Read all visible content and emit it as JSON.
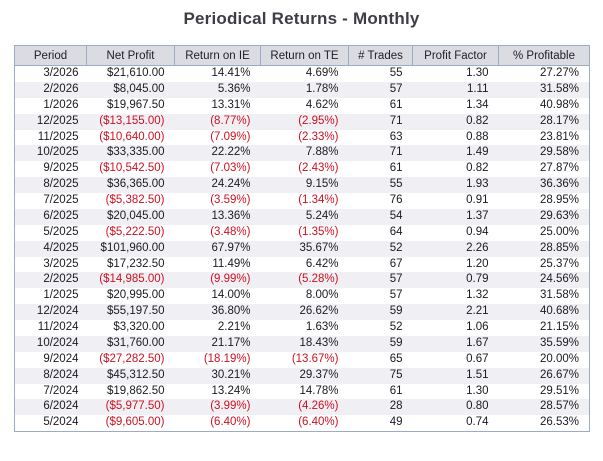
{
  "title": "Periodical Returns - Monthly",
  "colors": {
    "page_bg": "#ffffff",
    "title_color": "#3d3d46",
    "header_bg": "#dbdce1",
    "header_text": "#1e1e28",
    "border_color": "#9daac8",
    "body_text": "#1a1a22",
    "negative_red": "#cc1122",
    "alt_row_bg": "#f0f0f4"
  },
  "table": {
    "columns": [
      {
        "label": "Period"
      },
      {
        "label": "Net Profit"
      },
      {
        "label": "Return on IE"
      },
      {
        "label": "Return on TE"
      },
      {
        "label": "# Trades"
      },
      {
        "label": "Profit Factor"
      },
      {
        "label": "% Profitable"
      }
    ],
    "rows": [
      {
        "period": "3/2026",
        "net_profit": "$21,610.00",
        "return_on_ie": "14.41%",
        "return_on_te": "4.69%",
        "trades": "55",
        "profit_factor": "1.30",
        "pct_profitable": "27.27%"
      },
      {
        "period": "2/2026",
        "net_profit": "$8,045.00",
        "return_on_ie": "5.36%",
        "return_on_te": "1.78%",
        "trades": "57",
        "profit_factor": "1.11",
        "pct_profitable": "31.58%"
      },
      {
        "period": "1/2026",
        "net_profit": "$19,967.50",
        "return_on_ie": "13.31%",
        "return_on_te": "4.62%",
        "trades": "61",
        "profit_factor": "1.34",
        "pct_profitable": "40.98%"
      },
      {
        "period": "12/2025",
        "net_profit": "($13,155.00)",
        "return_on_ie": "(8.77%)",
        "return_on_te": "(2.95%)",
        "trades": "71",
        "profit_factor": "0.82",
        "pct_profitable": "28.17%"
      },
      {
        "period": "11/2025",
        "net_profit": "($10,640.00)",
        "return_on_ie": "(7.09%)",
        "return_on_te": "(2.33%)",
        "trades": "63",
        "profit_factor": "0.88",
        "pct_profitable": "23.81%"
      },
      {
        "period": "10/2025",
        "net_profit": "$33,335.00",
        "return_on_ie": "22.22%",
        "return_on_te": "7.88%",
        "trades": "71",
        "profit_factor": "1.49",
        "pct_profitable": "29.58%"
      },
      {
        "period": "9/2025",
        "net_profit": "($10,542.50)",
        "return_on_ie": "(7.03%)",
        "return_on_te": "(2.43%)",
        "trades": "61",
        "profit_factor": "0.82",
        "pct_profitable": "27.87%"
      },
      {
        "period": "8/2025",
        "net_profit": "$36,365.00",
        "return_on_ie": "24.24%",
        "return_on_te": "9.15%",
        "trades": "55",
        "profit_factor": "1.93",
        "pct_profitable": "36.36%"
      },
      {
        "period": "7/2025",
        "net_profit": "($5,382.50)",
        "return_on_ie": "(3.59%)",
        "return_on_te": "(1.34%)",
        "trades": "76",
        "profit_factor": "0.91",
        "pct_profitable": "28.95%"
      },
      {
        "period": "6/2025",
        "net_profit": "$20,045.00",
        "return_on_ie": "13.36%",
        "return_on_te": "5.24%",
        "trades": "54",
        "profit_factor": "1.37",
        "pct_profitable": "29.63%"
      },
      {
        "period": "5/2025",
        "net_profit": "($5,222.50)",
        "return_on_ie": "(3.48%)",
        "return_on_te": "(1.35%)",
        "trades": "64",
        "profit_factor": "0.94",
        "pct_profitable": "25.00%"
      },
      {
        "period": "4/2025",
        "net_profit": "$101,960.00",
        "return_on_ie": "67.97%",
        "return_on_te": "35.67%",
        "trades": "52",
        "profit_factor": "2.26",
        "pct_profitable": "28.85%"
      },
      {
        "period": "3/2025",
        "net_profit": "$17,232.50",
        "return_on_ie": "11.49%",
        "return_on_te": "6.42%",
        "trades": "67",
        "profit_factor": "1.20",
        "pct_profitable": "25.37%"
      },
      {
        "period": "2/2025",
        "net_profit": "($14,985.00)",
        "return_on_ie": "(9.99%)",
        "return_on_te": "(5.28%)",
        "trades": "57",
        "profit_factor": "0.79",
        "pct_profitable": "24.56%"
      },
      {
        "period": "1/2025",
        "net_profit": "$20,995.00",
        "return_on_ie": "14.00%",
        "return_on_te": "8.00%",
        "trades": "57",
        "profit_factor": "1.32",
        "pct_profitable": "31.58%"
      },
      {
        "period": "12/2024",
        "net_profit": "$55,197.50",
        "return_on_ie": "36.80%",
        "return_on_te": "26.62%",
        "trades": "59",
        "profit_factor": "2.21",
        "pct_profitable": "40.68%"
      },
      {
        "period": "11/2024",
        "net_profit": "$3,320.00",
        "return_on_ie": "2.21%",
        "return_on_te": "1.63%",
        "trades": "52",
        "profit_factor": "1.06",
        "pct_profitable": "21.15%"
      },
      {
        "period": "10/2024",
        "net_profit": "$31,760.00",
        "return_on_ie": "21.17%",
        "return_on_te": "18.43%",
        "trades": "59",
        "profit_factor": "1.67",
        "pct_profitable": "35.59%"
      },
      {
        "period": "9/2024",
        "net_profit": "($27,282.50)",
        "return_on_ie": "(18.19%)",
        "return_on_te": "(13.67%)",
        "trades": "65",
        "profit_factor": "0.67",
        "pct_profitable": "20.00%"
      },
      {
        "period": "8/2024",
        "net_profit": "$45,312.50",
        "return_on_ie": "30.21%",
        "return_on_te": "29.37%",
        "trades": "75",
        "profit_factor": "1.51",
        "pct_profitable": "26.67%"
      },
      {
        "period": "7/2024",
        "net_profit": "$19,862.50",
        "return_on_ie": "13.24%",
        "return_on_te": "14.78%",
        "trades": "61",
        "profit_factor": "1.30",
        "pct_profitable": "29.51%"
      },
      {
        "period": "6/2024",
        "net_profit": "($5,977.50)",
        "return_on_ie": "(3.99%)",
        "return_on_te": "(4.26%)",
        "trades": "28",
        "profit_factor": "0.80",
        "pct_profitable": "28.57%"
      },
      {
        "period": "5/2024",
        "net_profit": "($9,605.00)",
        "return_on_ie": "(6.40%)",
        "return_on_te": "(6.40%)",
        "trades": "49",
        "profit_factor": "0.74",
        "pct_profitable": "26.53%"
      }
    ]
  }
}
